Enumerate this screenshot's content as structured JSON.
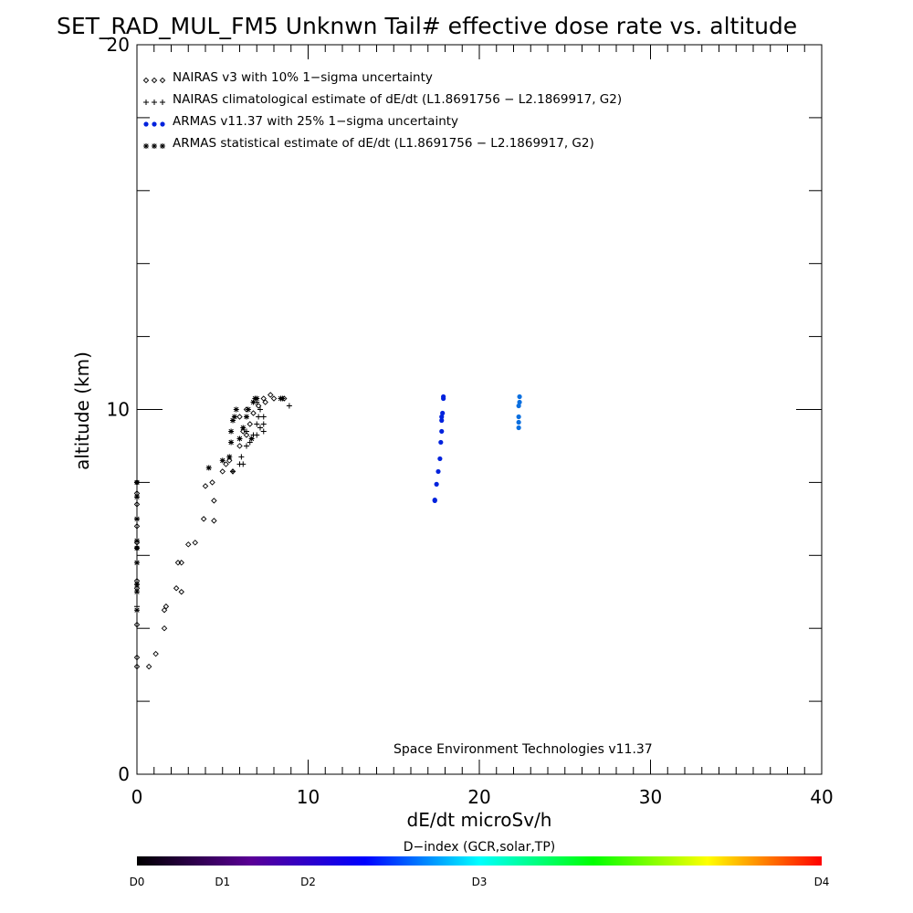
{
  "chart_data": {
    "type": "scatter",
    "title": "SET_RAD_MUL_FM5 Unknwn Tail#  effective dose rate vs. altitude",
    "xlabel": "dE/dt microSv/h",
    "ylabel": "altitude (km)",
    "xlim": [
      0,
      40
    ],
    "ylim": [
      0,
      20
    ],
    "x_tick_labels": [
      "0",
      "10",
      "20",
      "30",
      "40"
    ],
    "y_tick_labels": [
      "0",
      "10",
      "20"
    ],
    "x_major_ticks": [
      0,
      10,
      20,
      30,
      40
    ],
    "y_major_ticks": [
      0,
      10,
      20
    ],
    "x_minor_step": 1,
    "y_minor_step": 2,
    "legend_position": "top-left",
    "credit": "Space Environment Technologies v11.37",
    "colorbar": {
      "title": "D−index (GCR,solar,TP)",
      "labels": [
        {
          "text": "D0",
          "value": 0
        },
        {
          "text": "D1",
          "value": 0.125
        },
        {
          "text": "D2",
          "value": 0.25
        },
        {
          "text": "D3",
          "value": 0.5
        },
        {
          "text": "D4",
          "value": 1.0
        }
      ],
      "gradient": [
        "#000000",
        "#5a0096",
        "#0000ff",
        "#00ffff",
        "#00ff00",
        "#ffff00",
        "#ff0000"
      ]
    },
    "series": [
      {
        "name": "NAIRAS v3 with 10% 1−sigma uncertainty",
        "marker": "diamond",
        "color": "#000000",
        "points": [
          [
            0,
            2.95
          ],
          [
            0,
            3.2
          ],
          [
            0,
            4.1
          ],
          [
            0,
            5.1
          ],
          [
            0,
            5.3
          ],
          [
            0,
            6.2
          ],
          [
            0,
            6.35
          ],
          [
            0,
            6.8
          ],
          [
            0,
            7.4
          ],
          [
            0,
            7.7
          ],
          [
            0,
            8.0
          ],
          [
            0.7,
            2.95
          ],
          [
            1.1,
            3.3
          ],
          [
            1.6,
            4.0
          ],
          [
            1.7,
            4.6
          ],
          [
            1.6,
            4.5
          ],
          [
            2.3,
            5.1
          ],
          [
            2.6,
            5.0
          ],
          [
            2.4,
            5.8
          ],
          [
            2.6,
            5.8
          ],
          [
            3.0,
            6.3
          ],
          [
            3.4,
            6.35
          ],
          [
            3.9,
            7.0
          ],
          [
            4.5,
            6.95
          ],
          [
            4.0,
            7.9
          ],
          [
            4.4,
            8.0
          ],
          [
            4.5,
            7.5
          ],
          [
            5.0,
            8.3
          ],
          [
            5.2,
            8.5
          ],
          [
            5.6,
            8.3
          ],
          [
            5.4,
            8.6
          ],
          [
            6.0,
            9.0
          ],
          [
            6.2,
            9.4
          ],
          [
            6.4,
            9.3
          ],
          [
            6.6,
            9.6
          ],
          [
            6.0,
            9.8
          ],
          [
            6.4,
            10.0
          ],
          [
            6.8,
            9.9
          ],
          [
            7.4,
            10.3
          ],
          [
            7.5,
            10.2
          ],
          [
            7.8,
            10.4
          ],
          [
            8.0,
            10.3
          ],
          [
            8.6,
            10.3
          ],
          [
            7.1,
            10.1
          ]
        ]
      },
      {
        "name": "NAIRAS climatological estimate of dE/dt (L1.8691756 − L2.1869917, G2)",
        "marker": "plus",
        "color": "#000000",
        "points": [
          [
            0,
            8.0
          ],
          [
            0,
            7.6
          ],
          [
            0,
            7.0
          ],
          [
            0,
            6.2
          ],
          [
            0,
            5.2
          ],
          [
            0,
            4.6
          ],
          [
            5.6,
            8.3
          ],
          [
            6.0,
            8.5
          ],
          [
            6.1,
            8.7
          ],
          [
            6.2,
            8.5
          ],
          [
            6.4,
            9.0
          ],
          [
            6.4,
            9.4
          ],
          [
            6.6,
            9.1
          ],
          [
            6.8,
            9.3
          ],
          [
            7.0,
            9.3
          ],
          [
            7.0,
            9.6
          ],
          [
            7.1,
            9.8
          ],
          [
            7.2,
            9.5
          ],
          [
            7.4,
            9.4
          ],
          [
            7.4,
            9.6
          ],
          [
            7.4,
            9.8
          ],
          [
            7.0,
            10.2
          ],
          [
            7.2,
            10.0
          ],
          [
            8.9,
            10.1
          ]
        ]
      },
      {
        "name": "ARMAS v11.37 with 25% 1−sigma uncertainty",
        "marker": "dot",
        "color": "#0022dd",
        "points": [
          [
            17.4,
            7.5
          ],
          [
            17.4,
            7.52
          ],
          [
            17.5,
            7.95
          ],
          [
            17.6,
            8.3
          ],
          [
            17.7,
            8.65
          ],
          [
            17.75,
            9.1
          ],
          [
            17.8,
            9.4
          ],
          [
            17.8,
            9.7
          ],
          [
            17.8,
            9.8
          ],
          [
            17.85,
            9.9
          ],
          [
            17.9,
            10.3
          ],
          [
            17.9,
            10.35
          ]
        ]
      },
      {
        "name": "ARMAS statistical estimate of dE/dt (L1.8691756 − L2.1869917, G2)",
        "marker": "asterisk",
        "color": "#000000",
        "points": [
          [
            0,
            8.0
          ],
          [
            0,
            7.6
          ],
          [
            0,
            7.0
          ],
          [
            0,
            6.4
          ],
          [
            0,
            6.2
          ],
          [
            0,
            5.8
          ],
          [
            0,
            5.2
          ],
          [
            0,
            5.0
          ],
          [
            0,
            4.5
          ],
          [
            4.2,
            8.4
          ],
          [
            5.0,
            8.6
          ],
          [
            5.4,
            8.7
          ],
          [
            5.5,
            9.1
          ],
          [
            5.5,
            9.4
          ],
          [
            5.6,
            9.7
          ],
          [
            5.7,
            9.8
          ],
          [
            5.8,
            10.0
          ],
          [
            6.0,
            9.2
          ],
          [
            6.2,
            9.5
          ],
          [
            6.4,
            9.8
          ],
          [
            6.5,
            10.0
          ],
          [
            6.8,
            10.2
          ],
          [
            6.9,
            10.3
          ],
          [
            7.0,
            10.3
          ],
          [
            6.7,
            9.2
          ],
          [
            8.4,
            10.3
          ],
          [
            8.5,
            10.3
          ]
        ]
      },
      {
        "name": "",
        "marker": "dot",
        "color": "#0a6fe0",
        "points": [
          [
            22.3,
            9.5
          ],
          [
            22.3,
            9.65
          ],
          [
            22.3,
            9.8
          ],
          [
            22.3,
            10.1
          ],
          [
            22.35,
            10.2
          ],
          [
            22.35,
            10.35
          ]
        ]
      }
    ]
  }
}
